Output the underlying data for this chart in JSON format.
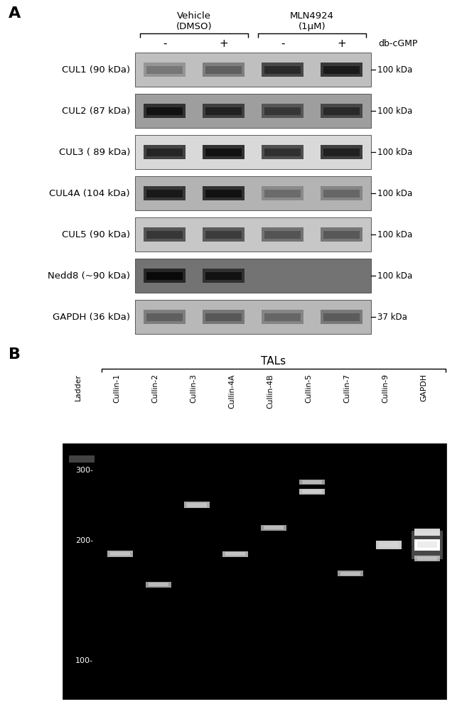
{
  "panel_A_label": "A",
  "panel_B_label": "B",
  "title_vehicle": "Vehicle\n(DMSO)",
  "title_mln": "MLN4924\n(1μM)",
  "db_cgmp_label": "db-cGMP",
  "col_labels": [
    "-",
    "+",
    "-",
    "+"
  ],
  "wb_rows": [
    {
      "label": "CUL1 (90 kDa)",
      "mw": "100 kDa",
      "bg": 0.75,
      "bands": [
        0.45,
        0.55,
        0.78,
        0.85
      ]
    },
    {
      "label": "CUL2 (87 kDa)",
      "mw": "100 kDa",
      "bg": 0.62,
      "bands": [
        0.88,
        0.82,
        0.72,
        0.78
      ]
    },
    {
      "label": "CUL3 ( 89 kDa)",
      "mw": "100 kDa",
      "bg": 0.85,
      "bands": [
        0.8,
        0.88,
        0.75,
        0.82
      ]
    },
    {
      "label": "CUL4A (104 kDa)",
      "mw": "100 kDa",
      "bg": 0.7,
      "bands": [
        0.85,
        0.88,
        0.5,
        0.52
      ]
    },
    {
      "label": "CUL5 (90 kDa)",
      "mw": "100 kDa",
      "bg": 0.78,
      "bands": [
        0.72,
        0.7,
        0.6,
        0.58
      ]
    },
    {
      "label": "Nedd8 (~90 kDa)",
      "mw": "100 kDa",
      "bg": 0.45,
      "bands": [
        0.92,
        0.88,
        0.0,
        0.0
      ]
    },
    {
      "label": "GAPDH (36 kDa)",
      "mw": "37 kDa",
      "bg": 0.72,
      "bands": [
        0.55,
        0.58,
        0.52,
        0.57
      ]
    }
  ],
  "gel_title": "TALs",
  "gel_col_labels": [
    "Ladder",
    "Cullin-1",
    "Cullin-2",
    "Cullin-3",
    "Cullin-4A",
    "Cullin-4B",
    "Cullin-5",
    "Cullin-7",
    "Cullin-9",
    "GAPDH"
  ],
  "background_color": "#ffffff",
  "fig_width": 6.5,
  "fig_height": 10.19,
  "dpi": 100
}
